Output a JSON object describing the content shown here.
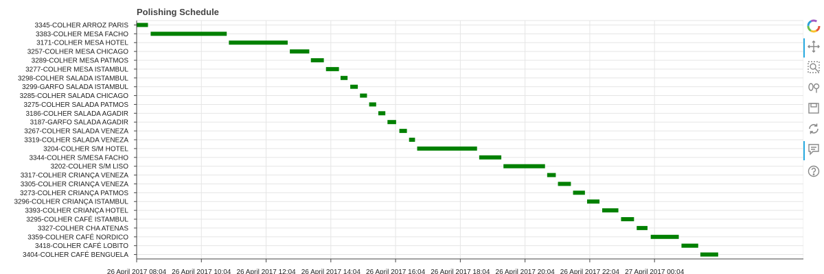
{
  "chart_data": {
    "type": "gantt",
    "title": "Polishing Schedule",
    "x_axis": {
      "type": "datetime",
      "range": [
        "2017-04-26 08:04",
        "2017-04-27 04:40"
      ],
      "tick_labels": [
        "26 April 2017 08:04",
        "26 April 2017 10:04",
        "26 April 2017 12:04",
        "26 April 2017 14:04",
        "26 April 2017 16:04",
        "26 April 2017 18:04",
        "26 April 2017 20:04",
        "26 April 2017 22:04",
        "27 April 2017 00:04"
      ],
      "tick_times": [
        "2017-04-26 08:04",
        "2017-04-26 10:04",
        "2017-04-26 12:04",
        "2017-04-26 14:04",
        "2017-04-26 16:04",
        "2017-04-26 18:04",
        "2017-04-26 20:04",
        "2017-04-26 22:04",
        "2017-04-27 00:04"
      ]
    },
    "grid": true,
    "color": "#008000",
    "tasks": [
      {
        "name": "3345-COLHER ARROZ PARIS",
        "start": "2017-04-26 08:04",
        "end": "2017-04-26 08:25"
      },
      {
        "name": "3383-COLHER MESA FACHO",
        "start": "2017-04-26 08:30",
        "end": "2017-04-26 10:51"
      },
      {
        "name": "3171-COLHER MESA HOTEL",
        "start": "2017-04-26 10:55",
        "end": "2017-04-26 12:44"
      },
      {
        "name": "3257-COLHER MESA CHICAGO",
        "start": "2017-04-26 12:48",
        "end": "2017-04-26 13:24"
      },
      {
        "name": "3289-COLHER MESA PATMOS",
        "start": "2017-04-26 13:27",
        "end": "2017-04-26 13:51"
      },
      {
        "name": "3277-COLHER MESA ISTAMBUL",
        "start": "2017-04-26 13:55",
        "end": "2017-04-26 14:19"
      },
      {
        "name": "3298-COLHER SALADA ISTAMBUL",
        "start": "2017-04-26 14:22",
        "end": "2017-04-26 14:35"
      },
      {
        "name": "3299-GARFO SALADA ISTAMBUL",
        "start": "2017-04-26 14:40",
        "end": "2017-04-26 14:54"
      },
      {
        "name": "3285-COLHER SALADA CHICAGO",
        "start": "2017-04-26 14:58",
        "end": "2017-04-26 15:11"
      },
      {
        "name": "3275-COLHER SALADA PATMOS",
        "start": "2017-04-26 15:15",
        "end": "2017-04-26 15:28"
      },
      {
        "name": "3186-COLHER SALADA AGADIR",
        "start": "2017-04-26 15:32",
        "end": "2017-04-26 15:45"
      },
      {
        "name": "3187-GARFO SALADA AGADIR",
        "start": "2017-04-26 15:49",
        "end": "2017-04-26 16:05"
      },
      {
        "name": "3267-COLHER SALADA VENEZA",
        "start": "2017-04-26 16:11",
        "end": "2017-04-26 16:25"
      },
      {
        "name": "3319-COLHER SALADA VENEZA",
        "start": "2017-04-26 16:29",
        "end": "2017-04-26 16:40"
      },
      {
        "name": "3204-COLHER S/M HOTEL",
        "start": "2017-04-26 16:44",
        "end": "2017-04-26 18:35"
      },
      {
        "name": "3344-COLHER S/MESA FACHO",
        "start": "2017-04-26 18:39",
        "end": "2017-04-26 19:20"
      },
      {
        "name": "3202-COLHER S/M LISO",
        "start": "2017-04-26 19:24",
        "end": "2017-04-26 20:41"
      },
      {
        "name": "3317-COLHER CRIANÇA VENEZA",
        "start": "2017-04-26 20:45",
        "end": "2017-04-26 21:01"
      },
      {
        "name": "3305-COLHER CRIANÇA VENEZA",
        "start": "2017-04-26 21:05",
        "end": "2017-04-26 21:29"
      },
      {
        "name": "3273-COLHER CRIANÇA PATMOS",
        "start": "2017-04-26 21:33",
        "end": "2017-04-26 21:55"
      },
      {
        "name": "3296-COLHER CRIANÇA ISTAMBUL",
        "start": "2017-04-26 21:59",
        "end": "2017-04-26 22:22"
      },
      {
        "name": "3393-COLHER CRIANÇA HOTEL",
        "start": "2017-04-26 22:27",
        "end": "2017-04-26 22:57"
      },
      {
        "name": "3295-COLHER CAFÉ ISTAMBUL",
        "start": "2017-04-26 23:02",
        "end": "2017-04-26 23:26"
      },
      {
        "name": "3327-COLHER CHA ATENAS",
        "start": "2017-04-26 23:31",
        "end": "2017-04-26 23:51"
      },
      {
        "name": "3359-COLHER CAFÉ NORDICO",
        "start": "2017-04-26 23:57",
        "end": "2017-04-27 00:49"
      },
      {
        "name": "3418-COLHER CAFÉ LOBITO",
        "start": "2017-04-27 00:54",
        "end": "2017-04-27 01:25"
      },
      {
        "name": "3404-COLHER CAFÉ BENGUELA",
        "start": "2017-04-27 01:29",
        "end": "2017-04-27 02:02"
      }
    ]
  },
  "toolbar": {
    "tools": [
      {
        "name": "bokeh-logo-icon",
        "active": false
      },
      {
        "name": "pan-icon",
        "active": true
      },
      {
        "name": "box-zoom-icon",
        "active": false
      },
      {
        "name": "wheel-zoom-icon",
        "active": false
      },
      {
        "name": "save-icon",
        "active": false
      },
      {
        "name": "reset-icon",
        "active": false
      },
      {
        "name": "hover-icon",
        "active": true
      },
      {
        "name": "help-icon",
        "active": false
      }
    ]
  }
}
